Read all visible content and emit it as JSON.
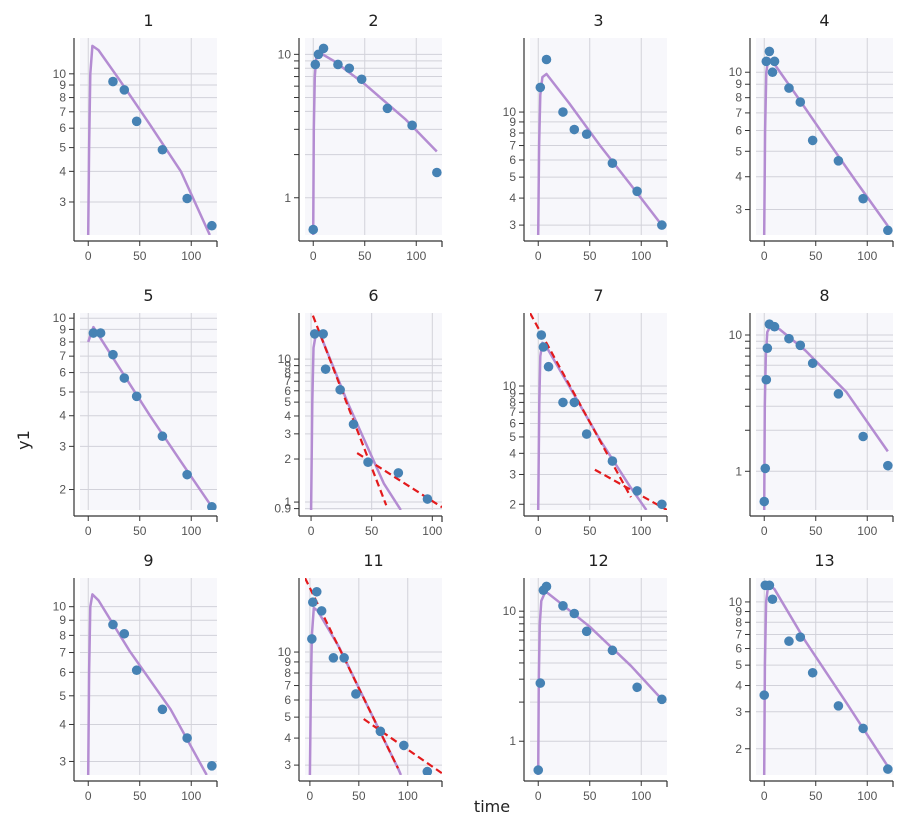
{
  "figure": {
    "xlabel": "time",
    "ylabel": "y1"
  },
  "colors": {
    "panel_bg": "#f7f7fb",
    "grid": "#d2d2da",
    "axis": "#333333",
    "points": "#4682b4",
    "fit": "#b48cd2",
    "tangent": "#e31a1c"
  },
  "chart_data": [
    {
      "type": "scatter",
      "title": "1",
      "xlim": [
        -8,
        125
      ],
      "ylim": [
        2.2,
        14
      ],
      "xticks": [
        0,
        50,
        100
      ],
      "yticks": [
        3,
        4,
        5,
        6,
        7,
        8,
        9,
        10
      ],
      "ytick_labels": [
        "3",
        "4",
        "5",
        "6",
        "7",
        "8",
        "9",
        "10"
      ],
      "points": [
        [
          24,
          9.3
        ],
        [
          35,
          8.6
        ],
        [
          47,
          6.4
        ],
        [
          72,
          4.9
        ],
        [
          96,
          3.1
        ],
        [
          120,
          2.4
        ]
      ],
      "fit": [
        [
          0,
          2.2
        ],
        [
          0.8,
          5
        ],
        [
          2,
          10
        ],
        [
          4,
          13
        ],
        [
          10,
          12.5
        ],
        [
          30,
          9.5
        ],
        [
          60,
          6.2
        ],
        [
          90,
          4.0
        ],
        [
          118,
          2.2
        ]
      ],
      "tangents": []
    },
    {
      "type": "scatter",
      "title": "2",
      "xlim": [
        -8,
        125
      ],
      "ylim": [
        0.55,
        13
      ],
      "xticks": [
        0,
        50,
        100
      ],
      "yticks": [
        1,
        2,
        3,
        4,
        5,
        6,
        7,
        8,
        9,
        10
      ],
      "ytick_labels": [
        "1",
        "",
        "",
        "",
        "",
        "",
        "",
        "",
        "",
        "10"
      ],
      "points": [
        [
          0,
          0.6
        ],
        [
          2,
          8.5
        ],
        [
          5,
          10
        ],
        [
          10,
          11
        ],
        [
          24,
          8.5
        ],
        [
          35,
          8.0
        ],
        [
          47,
          6.7
        ],
        [
          72,
          4.2
        ],
        [
          96,
          3.2
        ],
        [
          120,
          1.5
        ]
      ],
      "fit": [
        [
          0,
          0.55
        ],
        [
          0.5,
          3
        ],
        [
          1.5,
          7
        ],
        [
          3,
          9.5
        ],
        [
          6,
          10.3
        ],
        [
          20,
          9.0
        ],
        [
          50,
          6.2
        ],
        [
          90,
          3.5
        ],
        [
          120,
          2.1
        ]
      ],
      "tangents": []
    },
    {
      "type": "scatter",
      "title": "3",
      "xlim": [
        -8,
        125
      ],
      "ylim": [
        2.7,
        22
      ],
      "xticks": [
        0,
        50,
        100
      ],
      "yticks": [
        3,
        4,
        5,
        6,
        7,
        8,
        9,
        10
      ],
      "ytick_labels": [
        "3",
        "4",
        "5",
        "6",
        "7",
        "8",
        "9",
        "10"
      ],
      "points": [
        [
          2,
          13
        ],
        [
          8,
          17.5
        ],
        [
          24,
          10
        ],
        [
          35,
          8.3
        ],
        [
          47,
          7.9
        ],
        [
          72,
          5.8
        ],
        [
          96,
          4.3
        ],
        [
          120,
          3.0
        ]
      ],
      "fit": [
        [
          0,
          2.7
        ],
        [
          0.8,
          7
        ],
        [
          2,
          12
        ],
        [
          4,
          14.5
        ],
        [
          8,
          15
        ],
        [
          30,
          11
        ],
        [
          60,
          7.0
        ],
        [
          90,
          4.6
        ],
        [
          120,
          3.0
        ]
      ],
      "tangents": []
    },
    {
      "type": "scatter",
      "title": "4",
      "xlim": [
        -8,
        125
      ],
      "ylim": [
        2.4,
        13.5
      ],
      "xticks": [
        0,
        50,
        100
      ],
      "yticks": [
        3,
        4,
        5,
        6,
        7,
        8,
        9,
        10
      ],
      "ytick_labels": [
        "3",
        "4",
        "5",
        "6",
        "7",
        "8",
        "9",
        "10"
      ],
      "points": [
        [
          2,
          11
        ],
        [
          5,
          12
        ],
        [
          8,
          10
        ],
        [
          10,
          11
        ],
        [
          24,
          8.7
        ],
        [
          35,
          7.7
        ],
        [
          47,
          5.5
        ],
        [
          72,
          4.6
        ],
        [
          96,
          3.3
        ],
        [
          120,
          2.5
        ]
      ],
      "fit": [
        [
          0,
          2.4
        ],
        [
          0.8,
          6
        ],
        [
          2,
          10
        ],
        [
          4,
          11.3
        ],
        [
          8,
          11
        ],
        [
          30,
          8.3
        ],
        [
          60,
          5.6
        ],
        [
          90,
          3.8
        ],
        [
          120,
          2.6
        ]
      ],
      "tangents": []
    },
    {
      "type": "scatter",
      "title": "5",
      "xlim": [
        -8,
        125
      ],
      "ylim": [
        1.65,
        10.5
      ],
      "xticks": [
        0,
        50,
        100
      ],
      "yticks": [
        2,
        3,
        4,
        5,
        6,
        7,
        8,
        9,
        10
      ],
      "ytick_labels": [
        "2",
        "3",
        "4",
        "5",
        "6",
        "7",
        "8",
        "9",
        "10"
      ],
      "points": [
        [
          5,
          8.7
        ],
        [
          12,
          8.7
        ],
        [
          24,
          7.1
        ],
        [
          35,
          5.7
        ],
        [
          47,
          4.8
        ],
        [
          72,
          3.3
        ],
        [
          96,
          2.3
        ],
        [
          120,
          1.7
        ]
      ],
      "fit": [
        [
          0,
          8.0
        ],
        [
          5,
          9.2
        ],
        [
          30,
          6.3
        ],
        [
          60,
          4.0
        ],
        [
          90,
          2.6
        ],
        [
          120,
          1.7
        ]
      ],
      "tangents": []
    },
    {
      "type": "scatter",
      "title": "6",
      "xlim": [
        -5,
        108
      ],
      "ylim": [
        0.88,
        21
      ],
      "xticks": [
        0,
        50,
        100
      ],
      "yticks": [
        0.9,
        1,
        2,
        3,
        4,
        5,
        6,
        7,
        8,
        9,
        10
      ],
      "ytick_labels": [
        "0.9",
        "1",
        "2",
        "3",
        "4",
        "5",
        "6",
        "7",
        "8",
        "9",
        "10"
      ],
      "points": [
        [
          3,
          15
        ],
        [
          10,
          15
        ],
        [
          12,
          8.5
        ],
        [
          24,
          6.1
        ],
        [
          35,
          3.5
        ],
        [
          47,
          1.9
        ],
        [
          72,
          1.6
        ],
        [
          96,
          1.05
        ]
      ],
      "fit": [
        [
          0,
          0.88
        ],
        [
          1,
          5
        ],
        [
          2,
          12
        ],
        [
          4,
          15
        ],
        [
          8,
          14.5
        ],
        [
          30,
          5
        ],
        [
          60,
          1.35
        ],
        [
          74,
          0.88
        ]
      ],
      "tangents": [
        [
          [
            -5,
            28
          ],
          [
            62,
            0.95
          ]
        ],
        [
          [
            38,
            2.2
          ],
          [
            108,
            0.92
          ]
        ]
      ]
    },
    {
      "type": "scatter",
      "title": "7",
      "xlim": [
        -8,
        125
      ],
      "ylim": [
        1.85,
        27
      ],
      "xticks": [
        0,
        50,
        100
      ],
      "yticks": [
        2,
        3,
        4,
        5,
        6,
        7,
        8,
        9,
        10
      ],
      "ytick_labels": [
        "2",
        "3",
        "4",
        "5",
        "6",
        "7",
        "8",
        "9",
        "10"
      ],
      "points": [
        [
          3,
          20
        ],
        [
          5,
          17
        ],
        [
          10,
          13
        ],
        [
          24,
          8
        ],
        [
          35,
          8
        ],
        [
          47,
          5.2
        ],
        [
          72,
          3.6
        ],
        [
          96,
          2.4
        ],
        [
          120,
          2.0
        ]
      ],
      "fit": [
        [
          0,
          1.85
        ],
        [
          1,
          8
        ],
        [
          2,
          15
        ],
        [
          4,
          18
        ],
        [
          8,
          17
        ],
        [
          30,
          10
        ],
        [
          60,
          4.8
        ],
        [
          90,
          2.5
        ],
        [
          105,
          1.85
        ]
      ],
      "tangents": [
        [
          [
            -8,
            27
          ],
          [
            90,
            2.2
          ]
        ],
        [
          [
            55,
            3.2
          ],
          [
            125,
            1.85
          ]
        ]
      ]
    },
    {
      "type": "scatter",
      "title": "8",
      "xlim": [
        -8,
        125
      ],
      "ylim": [
        0.52,
        14.5
      ],
      "xticks": [
        0,
        50,
        100
      ],
      "yticks": [
        1,
        2,
        3,
        4,
        5,
        6,
        7,
        8,
        9,
        10
      ],
      "ytick_labels": [
        "1",
        "",
        "",
        "",
        "",
        "",
        "",
        "",
        "",
        "10"
      ],
      "points": [
        [
          0,
          0.6
        ],
        [
          1,
          1.05
        ],
        [
          2,
          4.7
        ],
        [
          3,
          8
        ],
        [
          5,
          12
        ],
        [
          10,
          11.5
        ],
        [
          24,
          9.4
        ],
        [
          35,
          8.4
        ],
        [
          47,
          6.2
        ],
        [
          72,
          3.7
        ],
        [
          96,
          1.8
        ],
        [
          120,
          1.1
        ]
      ],
      "fit": [
        [
          0,
          0.52
        ],
        [
          0.5,
          3
        ],
        [
          1.5,
          7
        ],
        [
          3,
          10.5
        ],
        [
          7,
          12
        ],
        [
          15,
          11
        ],
        [
          40,
          7.7
        ],
        [
          80,
          3.8
        ],
        [
          120,
          1.4
        ]
      ],
      "tangents": []
    },
    {
      "type": "scatter",
      "title": "9",
      "xlim": [
        -8,
        125
      ],
      "ylim": [
        2.7,
        12.5
      ],
      "xticks": [
        0,
        50,
        100
      ],
      "yticks": [
        3,
        4,
        5,
        6,
        7,
        8,
        9,
        10
      ],
      "ytick_labels": [
        "3",
        "4",
        "5",
        "6",
        "7",
        "8",
        "9",
        "10"
      ],
      "points": [
        [
          24,
          8.7
        ],
        [
          35,
          8.1
        ],
        [
          47,
          6.1
        ],
        [
          72,
          4.5
        ],
        [
          96,
          3.6
        ],
        [
          120,
          2.9
        ]
      ],
      "fit": [
        [
          0,
          2.7
        ],
        [
          0.8,
          6
        ],
        [
          2,
          10
        ],
        [
          4,
          11
        ],
        [
          10,
          10.5
        ],
        [
          40,
          7.1
        ],
        [
          80,
          4.5
        ],
        [
          115,
          2.7
        ]
      ],
      "tangents": []
    },
    {
      "type": "scatter",
      "title": "11",
      "xlim": [
        -5,
        135
      ],
      "ylim": [
        2.7,
        22
      ],
      "xticks": [
        0,
        50,
        100
      ],
      "yticks": [
        3,
        4,
        5,
        6,
        7,
        8,
        9,
        10
      ],
      "ytick_labels": [
        "3",
        "4",
        "5",
        "6",
        "7",
        "8",
        "9",
        "10"
      ],
      "points": [
        [
          2,
          11.5
        ],
        [
          3,
          17
        ],
        [
          7,
          19
        ],
        [
          12,
          15.5
        ],
        [
          24,
          9.4
        ],
        [
          35,
          9.4
        ],
        [
          47,
          6.4
        ],
        [
          72,
          4.3
        ],
        [
          96,
          3.7
        ],
        [
          120,
          2.8
        ]
      ],
      "fit": [
        [
          0,
          2.7
        ],
        [
          1,
          7
        ],
        [
          2,
          12
        ],
        [
          4,
          16
        ],
        [
          8,
          15.5
        ],
        [
          30,
          10.5
        ],
        [
          60,
          5.5
        ],
        [
          90,
          2.9
        ],
        [
          93,
          2.7
        ]
      ],
      "tangents": [
        [
          [
            -5,
            22
          ],
          [
            90,
            2.9
          ]
        ],
        [
          [
            55,
            4.9
          ],
          [
            135,
            2.75
          ]
        ]
      ]
    },
    {
      "type": "scatter",
      "title": "12",
      "xlim": [
        -8,
        125
      ],
      "ylim": [
        0.55,
        18
      ],
      "xticks": [
        0,
        50,
        100
      ],
      "yticks": [
        1,
        2,
        3,
        4,
        5,
        6,
        7,
        8,
        9,
        10
      ],
      "ytick_labels": [
        "1",
        "",
        "",
        "",
        "",
        "",
        "",
        "",
        "",
        "10"
      ],
      "points": [
        [
          0,
          0.6
        ],
        [
          2,
          2.8
        ],
        [
          5,
          14.5
        ],
        [
          8,
          15.5
        ],
        [
          24,
          11
        ],
        [
          35,
          9.6
        ],
        [
          47,
          7.0
        ],
        [
          72,
          5.0
        ],
        [
          96,
          2.6
        ],
        [
          120,
          2.1
        ]
      ],
      "fit": [
        [
          0,
          0.55
        ],
        [
          0.5,
          3
        ],
        [
          1.5,
          8
        ],
        [
          3,
          12
        ],
        [
          7,
          14.2
        ],
        [
          20,
          11.8
        ],
        [
          50,
          7.6
        ],
        [
          90,
          3.8
        ],
        [
          120,
          2.1
        ]
      ],
      "tangents": []
    },
    {
      "type": "scatter",
      "title": "13",
      "xlim": [
        -8,
        125
      ],
      "ylim": [
        1.5,
        13
      ],
      "xticks": [
        0,
        50,
        100
      ],
      "yticks": [
        2,
        3,
        4,
        5,
        6,
        7,
        8,
        9,
        10
      ],
      "ytick_labels": [
        "2",
        "3",
        "4",
        "5",
        "6",
        "7",
        "8",
        "9",
        "10"
      ],
      "points": [
        [
          0,
          3.6
        ],
        [
          1,
          12
        ],
        [
          5,
          12
        ],
        [
          8,
          10.3
        ],
        [
          24,
          6.5
        ],
        [
          35,
          6.8
        ],
        [
          47,
          4.6
        ],
        [
          72,
          3.2
        ],
        [
          96,
          2.5
        ],
        [
          120,
          1.6
        ]
      ],
      "fit": [
        [
          0,
          1.5
        ],
        [
          0.6,
          5
        ],
        [
          1.8,
          10
        ],
        [
          4,
          12.2
        ],
        [
          10,
          11.5
        ],
        [
          40,
          6.5
        ],
        [
          80,
          3.3
        ],
        [
          120,
          1.65
        ]
      ],
      "tangents": []
    }
  ]
}
